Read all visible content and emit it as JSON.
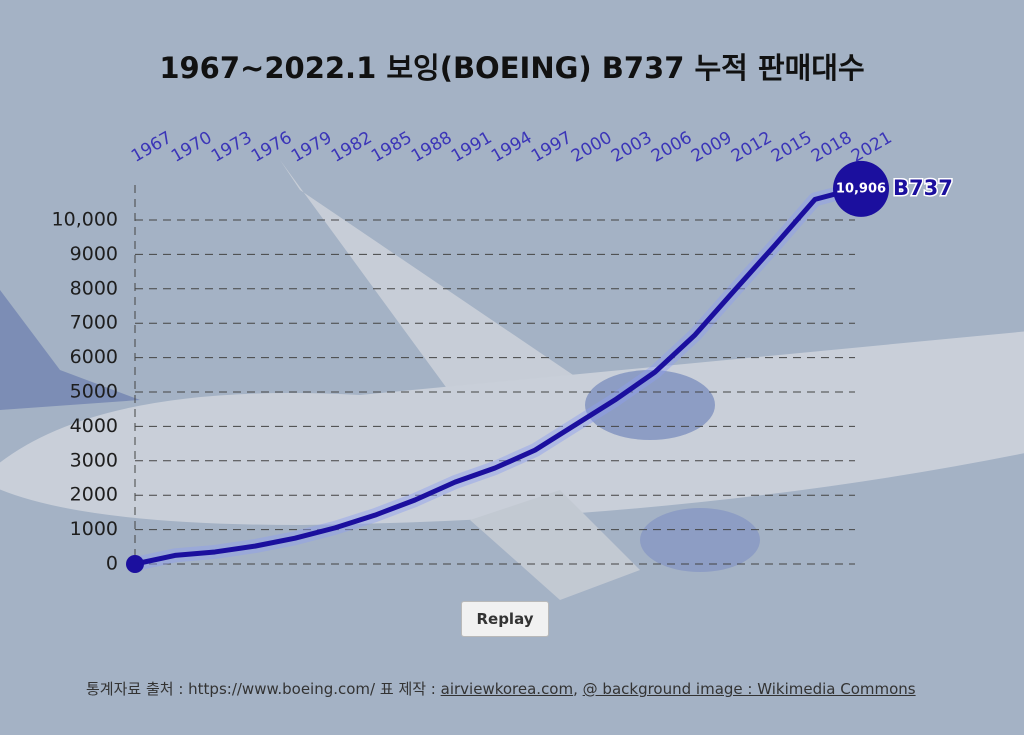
{
  "chart_data": {
    "type": "line",
    "title": "1967~2022.1 보잉(BOEING) B737 누적 판매대수",
    "x": [
      1967,
      1970,
      1973,
      1976,
      1979,
      1982,
      1985,
      1988,
      1991,
      1994,
      1997,
      2000,
      2003,
      2006,
      2009,
      2012,
      2015,
      2018,
      2021
    ],
    "series": [
      {
        "name": "B737",
        "color": "#1b0f9e",
        "values": [
          0,
          250,
          350,
          520,
          750,
          1050,
          1420,
          1860,
          2380,
          2790,
          3310,
          4040,
          4770,
          5580,
          6660,
          7970,
          9270,
          10600,
          10906
        ],
        "value_labels": [
          null,
          null,
          null,
          null,
          null,
          null,
          null,
          null,
          null,
          null,
          null,
          null,
          null,
          null,
          null,
          null,
          null,
          null,
          "10,906"
        ]
      }
    ],
    "xlim": [
      1967,
      2021
    ],
    "xticks": [
      1967,
      1970,
      1973,
      1976,
      1979,
      1982,
      1985,
      1988,
      1991,
      1994,
      1997,
      2000,
      2003,
      2006,
      2009,
      2012,
      2015,
      2018,
      2021
    ],
    "ylim": [
      0,
      11000
    ],
    "yticks": [
      0,
      1000,
      2000,
      3000,
      4000,
      5000,
      6000,
      7000,
      8000,
      9000,
      {
        "value": 10000,
        "label": "10,000"
      }
    ],
    "grid": true,
    "button": "Replay",
    "source": [
      "통계자료 출처 : https://www.boeing.com/ 표 제작 : ",
      "airviewkorea.com",
      ", ",
      "@ background image : Wikimedia Commons"
    ]
  }
}
